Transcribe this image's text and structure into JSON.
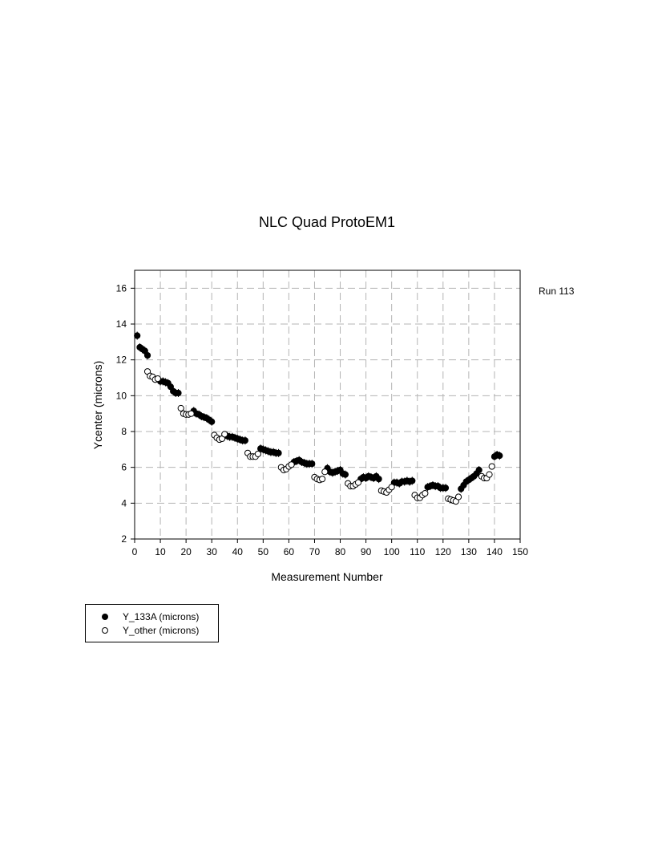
{
  "chart_data": {
    "type": "scatter",
    "title": "NLC Quad ProtoEM1",
    "xlabel": "Measurement Number",
    "ylabel": "Ycenter (microns)",
    "annotation": "Run 113",
    "xlim": [
      0,
      150
    ],
    "ylim": [
      2,
      17
    ],
    "xticks": [
      0,
      10,
      20,
      30,
      40,
      50,
      60,
      70,
      80,
      90,
      100,
      110,
      120,
      130,
      140,
      150
    ],
    "yticks": [
      2,
      4,
      6,
      8,
      10,
      12,
      14,
      16
    ],
    "grid": true,
    "legend_position": "below-left",
    "series": [
      {
        "name": "Y_133A (microns)",
        "marker": "filled-circle",
        "color": "#000000",
        "points": [
          [
            1,
            13.35
          ],
          [
            2,
            12.7
          ],
          [
            3,
            12.6
          ],
          [
            4,
            12.5
          ],
          [
            5,
            12.25
          ],
          [
            10,
            10.8
          ],
          [
            11,
            10.8
          ],
          [
            12,
            10.75
          ],
          [
            13,
            10.7
          ],
          [
            14,
            10.5
          ],
          [
            15,
            10.25
          ],
          [
            16,
            10.15
          ],
          [
            17,
            10.15
          ],
          [
            23,
            9.15
          ],
          [
            24,
            9.0
          ],
          [
            25,
            8.95
          ],
          [
            26,
            8.85
          ],
          [
            27,
            8.8
          ],
          [
            28,
            8.75
          ],
          [
            29,
            8.65
          ],
          [
            30,
            8.55
          ],
          [
            36,
            7.75
          ],
          [
            37,
            7.7
          ],
          [
            38,
            7.7
          ],
          [
            39,
            7.65
          ],
          [
            40,
            7.6
          ],
          [
            41,
            7.55
          ],
          [
            42,
            7.5
          ],
          [
            43,
            7.5
          ],
          [
            49,
            7.05
          ],
          [
            50,
            7.0
          ],
          [
            51,
            6.95
          ],
          [
            52,
            6.9
          ],
          [
            53,
            6.85
          ],
          [
            54,
            6.85
          ],
          [
            55,
            6.8
          ],
          [
            56,
            6.8
          ],
          [
            62,
            6.3
          ],
          [
            63,
            6.35
          ],
          [
            64,
            6.4
          ],
          [
            65,
            6.3
          ],
          [
            66,
            6.25
          ],
          [
            67,
            6.2
          ],
          [
            68,
            6.2
          ],
          [
            69,
            6.2
          ],
          [
            75,
            5.95
          ],
          [
            76,
            5.75
          ],
          [
            77,
            5.7
          ],
          [
            78,
            5.75
          ],
          [
            79,
            5.8
          ],
          [
            80,
            5.85
          ],
          [
            81,
            5.65
          ],
          [
            82,
            5.6
          ],
          [
            88,
            5.35
          ],
          [
            89,
            5.45
          ],
          [
            90,
            5.4
          ],
          [
            91,
            5.5
          ],
          [
            92,
            5.45
          ],
          [
            93,
            5.4
          ],
          [
            94,
            5.5
          ],
          [
            95,
            5.35
          ],
          [
            101,
            5.15
          ],
          [
            102,
            5.15
          ],
          [
            103,
            5.1
          ],
          [
            104,
            5.2
          ],
          [
            105,
            5.2
          ],
          [
            106,
            5.25
          ],
          [
            107,
            5.2
          ],
          [
            108,
            5.25
          ],
          [
            114,
            4.9
          ],
          [
            115,
            4.95
          ],
          [
            116,
            5.0
          ],
          [
            117,
            4.95
          ],
          [
            118,
            4.95
          ],
          [
            119,
            4.85
          ],
          [
            120,
            4.85
          ],
          [
            121,
            4.85
          ],
          [
            127,
            4.8
          ],
          [
            128,
            5.0
          ],
          [
            129,
            5.2
          ],
          [
            130,
            5.3
          ],
          [
            131,
            5.4
          ],
          [
            132,
            5.5
          ],
          [
            133,
            5.65
          ],
          [
            134,
            5.85
          ],
          [
            140,
            6.6
          ],
          [
            141,
            6.7
          ],
          [
            142,
            6.65
          ]
        ]
      },
      {
        "name": "Y_other (microns)",
        "marker": "open-circle",
        "color": "#000000",
        "points": [
          [
            5,
            11.35
          ],
          [
            6,
            11.1
          ],
          [
            7,
            11.05
          ],
          [
            8,
            10.9
          ],
          [
            9,
            10.95
          ],
          [
            18,
            9.3
          ],
          [
            19,
            9.0
          ],
          [
            20,
            8.95
          ],
          [
            21,
            8.95
          ],
          [
            22,
            9.0
          ],
          [
            31,
            7.8
          ],
          [
            32,
            7.65
          ],
          [
            33,
            7.55
          ],
          [
            34,
            7.6
          ],
          [
            35,
            7.85
          ],
          [
            44,
            6.8
          ],
          [
            45,
            6.6
          ],
          [
            46,
            6.6
          ],
          [
            47,
            6.6
          ],
          [
            48,
            6.75
          ],
          [
            57,
            6.0
          ],
          [
            58,
            5.85
          ],
          [
            59,
            5.9
          ],
          [
            60,
            6.05
          ],
          [
            61,
            6.15
          ],
          [
            70,
            5.45
          ],
          [
            71,
            5.35
          ],
          [
            72,
            5.3
          ],
          [
            73,
            5.35
          ],
          [
            74,
            5.75
          ],
          [
            83,
            5.1
          ],
          [
            84,
            4.95
          ],
          [
            85,
            4.95
          ],
          [
            86,
            5.05
          ],
          [
            87,
            5.15
          ],
          [
            96,
            4.7
          ],
          [
            97,
            4.65
          ],
          [
            98,
            4.6
          ],
          [
            99,
            4.75
          ],
          [
            100,
            4.9
          ],
          [
            109,
            4.45
          ],
          [
            110,
            4.3
          ],
          [
            111,
            4.3
          ],
          [
            112,
            4.45
          ],
          [
            113,
            4.55
          ],
          [
            122,
            4.25
          ],
          [
            123,
            4.2
          ],
          [
            124,
            4.15
          ],
          [
            125,
            4.1
          ],
          [
            126,
            4.35
          ],
          [
            135,
            5.5
          ],
          [
            136,
            5.4
          ],
          [
            137,
            5.4
          ],
          [
            138,
            5.6
          ],
          [
            139,
            6.05
          ]
        ]
      }
    ]
  }
}
